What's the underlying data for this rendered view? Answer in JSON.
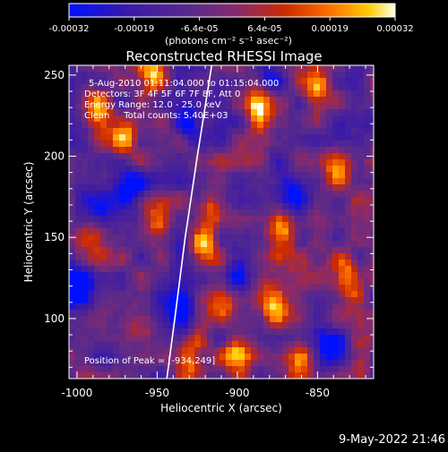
{
  "colorbar": {
    "ticks": [
      "-0.00032",
      "-0.00019",
      "-6.4e-05",
      "6.4e-05",
      "0.00019",
      "0.00032"
    ],
    "unit_label": "(photons cm⁻² s⁻¹ asec⁻²)",
    "range": [
      -0.00032,
      0.00032
    ],
    "colors": [
      "#0010ff",
      "#3a1aa8",
      "#5a2a8a",
      "#8a2a6a",
      "#cc2a00",
      "#ff7000",
      "#ffcc00",
      "#ffffe8"
    ]
  },
  "chart_data": {
    "type": "heatmap",
    "title": "Reconstructed RHESSI Image",
    "xlabel": "Heliocentric X (arcsec)",
    "ylabel": "Heliocentric Y (arcsec)",
    "xlim": [
      -1005,
      -815
    ],
    "ylim": [
      63,
      256
    ],
    "x_ticks": [
      "-1000",
      "-950",
      "-900",
      "-850"
    ],
    "x_tick_values": [
      -1000,
      -950,
      -900,
      -850
    ],
    "y_ticks": [
      "100",
      "150",
      "200",
      "250"
    ],
    "y_tick_values": [
      100,
      150,
      200,
      250
    ],
    "limb_line": [
      [
        -944.0,
        63
      ],
      [
        -939.0,
        100
      ],
      [
        -932.5,
        150
      ],
      [
        -925.0,
        200
      ],
      [
        -916.0,
        256
      ]
    ],
    "peak_position": [
      -934,
      249
    ],
    "info_lines": [
      "5-Aug-2010 01:11:04.000 to 01:15:04.000",
      "Detectors: 3F 4F 5F 6F 7F 8F, Att 0",
      "Energy Range: 12.0 - 25.0 keV",
      "Clean     Total counts: 5.40E+03"
    ],
    "peak_label": "Position of Peak = [-934,249]",
    "bright_sources": [
      {
        "x": -955,
        "y": 250,
        "level": 1.0
      },
      {
        "x": -872,
        "y": 152,
        "level": 1.0
      },
      {
        "x": -877,
        "y": 110,
        "level": 1.0
      },
      {
        "x": -930,
        "y": 75,
        "level": 0.95
      },
      {
        "x": -915,
        "y": 168,
        "level": 0.85
      },
      {
        "x": -830,
        "y": 125,
        "level": 0.9
      },
      {
        "x": -920,
        "y": 145,
        "level": 0.85
      },
      {
        "x": -970,
        "y": 213,
        "level": 0.75
      },
      {
        "x": -887,
        "y": 230,
        "level": 0.8
      },
      {
        "x": -850,
        "y": 240,
        "level": 0.8
      },
      {
        "x": -990,
        "y": 230,
        "level": 0.7
      },
      {
        "x": -950,
        "y": 160,
        "level": 0.7
      },
      {
        "x": -910,
        "y": 110,
        "level": 0.75
      },
      {
        "x": -960,
        "y": 95,
        "level": 0.7
      },
      {
        "x": -838,
        "y": 195,
        "level": 0.7
      },
      {
        "x": -860,
        "y": 75,
        "level": 0.65
      },
      {
        "x": -990,
        "y": 150,
        "level": 0.55
      },
      {
        "x": -900,
        "y": 80,
        "level": 0.8
      },
      {
        "x": -823,
        "y": 73,
        "level": 0.7
      }
    ],
    "dim_sources": [
      {
        "x": -1000,
        "y": 120,
        "level": -0.9
      },
      {
        "x": -930,
        "y": 220,
        "level": -0.8
      },
      {
        "x": -965,
        "y": 180,
        "level": -0.8
      },
      {
        "x": -935,
        "y": 105,
        "level": -0.8
      },
      {
        "x": -865,
        "y": 180,
        "level": -0.7
      },
      {
        "x": -840,
        "y": 80,
        "level": -0.8
      },
      {
        "x": -880,
        "y": 250,
        "level": -0.6
      },
      {
        "x": -985,
        "y": 170,
        "level": -0.6
      },
      {
        "x": -900,
        "y": 125,
        "level": -0.5
      }
    ]
  },
  "footer": {
    "timestamp": "9-May-2022 21:46"
  }
}
